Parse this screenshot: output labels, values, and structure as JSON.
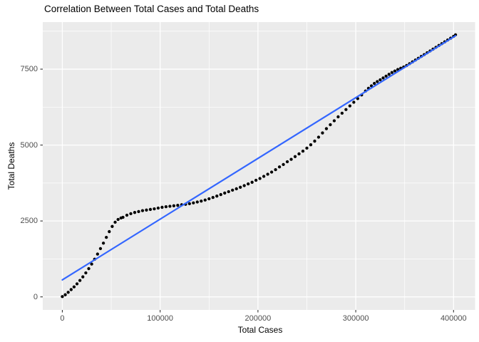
{
  "title": "Correlation Between Total Cases and Total Deaths",
  "chart_data": {
    "type": "scatter",
    "title": "Correlation Between Total Cases and Total Deaths",
    "xlabel": "Total Cases",
    "ylabel": "Total Deaths",
    "xlim": [
      -20000,
      422000
    ],
    "ylim": [
      -430,
      9050
    ],
    "x_major_ticks": [
      0,
      100000,
      200000,
      300000,
      400000
    ],
    "x_tick_labels": [
      "0",
      "100000",
      "200000",
      "300000",
      "400000"
    ],
    "x_minor_ticks": [
      50000,
      150000,
      250000,
      350000
    ],
    "y_major_ticks": [
      0,
      2500,
      5000,
      7500
    ],
    "y_tick_labels": [
      "0",
      "2500",
      "5000",
      "7500"
    ],
    "y_minor_ticks": [
      1250,
      3750,
      6250,
      8750
    ],
    "grid": true,
    "legend_position": "none",
    "colors": {
      "panel_background": "#EBEBEB",
      "grid": "#FFFFFF",
      "points": "#000000",
      "smooth_line": "#3366FF",
      "tick_text": "#4D4D4D",
      "tick_mark": "#333333",
      "axis_title": "#000000"
    },
    "series": [
      {
        "name": "daily cumulative observations",
        "type": "scatter",
        "color": "#000000",
        "points": [
          [
            0,
            10
          ],
          [
            3000,
            70
          ],
          [
            6000,
            150
          ],
          [
            9000,
            240
          ],
          [
            12000,
            330
          ],
          [
            15000,
            430
          ],
          [
            18000,
            540
          ],
          [
            21000,
            660
          ],
          [
            24000,
            790
          ],
          [
            27000,
            930
          ],
          [
            30000,
            1080
          ],
          [
            33000,
            1240
          ],
          [
            36000,
            1410
          ],
          [
            39000,
            1590
          ],
          [
            42000,
            1770
          ],
          [
            45000,
            1960
          ],
          [
            48000,
            2150
          ],
          [
            51000,
            2320
          ],
          [
            54000,
            2460
          ],
          [
            57000,
            2550
          ],
          [
            60000,
            2600
          ],
          [
            62000,
            2620
          ],
          [
            66000,
            2690
          ],
          [
            70000,
            2740
          ],
          [
            74000,
            2780
          ],
          [
            78000,
            2810
          ],
          [
            82000,
            2840
          ],
          [
            86000,
            2860
          ],
          [
            90000,
            2880
          ],
          [
            94000,
            2900
          ],
          [
            98000,
            2925
          ],
          [
            102000,
            2950
          ],
          [
            106000,
            2970
          ],
          [
            110000,
            2985
          ],
          [
            114000,
            3000
          ],
          [
            118000,
            3015
          ],
          [
            122000,
            3035
          ],
          [
            126000,
            3050
          ],
          [
            130000,
            3070
          ],
          [
            134000,
            3095
          ],
          [
            138000,
            3125
          ],
          [
            142000,
            3155
          ],
          [
            146000,
            3190
          ],
          [
            150000,
            3230
          ],
          [
            154000,
            3275
          ],
          [
            158000,
            3320
          ],
          [
            162000,
            3370
          ],
          [
            166000,
            3420
          ],
          [
            170000,
            3465
          ],
          [
            174000,
            3515
          ],
          [
            178000,
            3560
          ],
          [
            182000,
            3610
          ],
          [
            186000,
            3665
          ],
          [
            190000,
            3720
          ],
          [
            194000,
            3775
          ],
          [
            198000,
            3840
          ],
          [
            202000,
            3900
          ],
          [
            206000,
            3970
          ],
          [
            210000,
            4040
          ],
          [
            214000,
            4110
          ],
          [
            218000,
            4190
          ],
          [
            222000,
            4280
          ],
          [
            226000,
            4360
          ],
          [
            230000,
            4450
          ],
          [
            234000,
            4530
          ],
          [
            238000,
            4620
          ],
          [
            242000,
            4710
          ],
          [
            246000,
            4800
          ],
          [
            250000,
            4900
          ],
          [
            254000,
            5010
          ],
          [
            258000,
            5130
          ],
          [
            262000,
            5260
          ],
          [
            266000,
            5400
          ],
          [
            270000,
            5540
          ],
          [
            274000,
            5670
          ],
          [
            278000,
            5800
          ],
          [
            282000,
            5930
          ],
          [
            286000,
            6050
          ],
          [
            290000,
            6170
          ],
          [
            294000,
            6290
          ],
          [
            298000,
            6410
          ],
          [
            302000,
            6530
          ],
          [
            306000,
            6650
          ],
          [
            310000,
            6780
          ],
          [
            313000,
            6870
          ],
          [
            316000,
            6950
          ],
          [
            319000,
            7030
          ],
          [
            322000,
            7090
          ],
          [
            325000,
            7150
          ],
          [
            328000,
            7210
          ],
          [
            331000,
            7270
          ],
          [
            334000,
            7330
          ],
          [
            337000,
            7390
          ],
          [
            340000,
            7440
          ],
          [
            343000,
            7490
          ],
          [
            346000,
            7530
          ],
          [
            349000,
            7570
          ],
          [
            352000,
            7620
          ],
          [
            355000,
            7680
          ],
          [
            358000,
            7740
          ],
          [
            361000,
            7800
          ],
          [
            364000,
            7860
          ],
          [
            367000,
            7920
          ],
          [
            370000,
            7980
          ],
          [
            373000,
            8040
          ],
          [
            376000,
            8100
          ],
          [
            379000,
            8160
          ],
          [
            382000,
            8220
          ],
          [
            385000,
            8280
          ],
          [
            388000,
            8340
          ],
          [
            391000,
            8400
          ],
          [
            394000,
            8460
          ],
          [
            397000,
            8520
          ],
          [
            400000,
            8580
          ],
          [
            402000,
            8630
          ]
        ]
      },
      {
        "name": "linear fit",
        "type": "line",
        "color": "#3366FF",
        "points": [
          [
            0,
            560
          ],
          [
            402000,
            8600
          ]
        ]
      }
    ]
  }
}
